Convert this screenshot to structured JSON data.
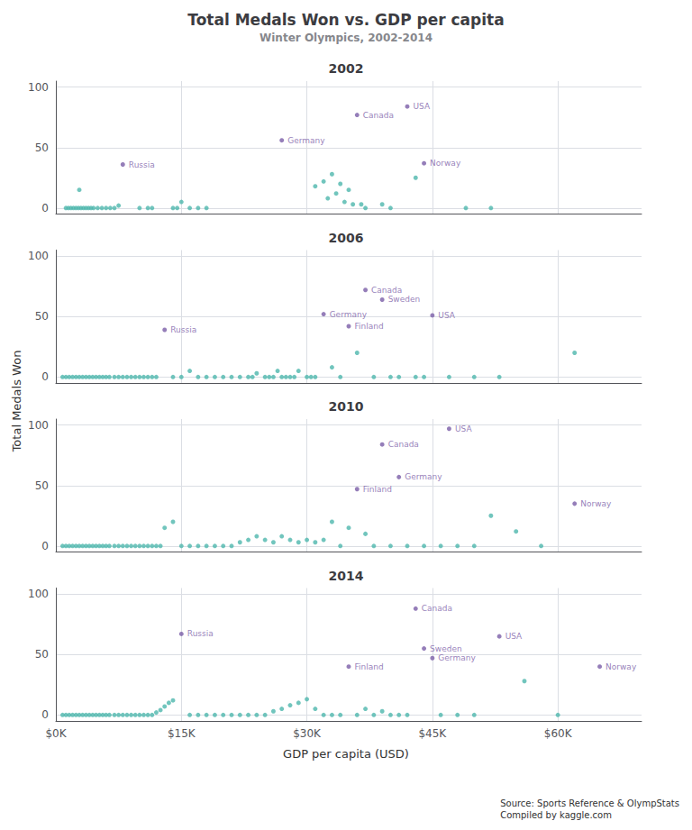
{
  "title": "Total Medals Won vs. GDP per capita",
  "subtitle": "Winter Olympics, 2002-2014",
  "xlabel": "GDP per capita (USD)",
  "ylabel": "Total Medals Won",
  "source": "Source: Sports Reference & OlympStats\nCompiled by kaggle.com",
  "chart_data": [
    {
      "type": "scatter",
      "title": "2002",
      "xlim": [
        0,
        70000
      ],
      "ylim": [
        -5,
        105
      ],
      "xticks": [
        {
          "value": 0,
          "label": "$0K"
        },
        {
          "value": 15000,
          "label": "$15K"
        },
        {
          "value": 30000,
          "label": "$30K"
        },
        {
          "value": 45000,
          "label": "$45K"
        },
        {
          "value": 60000,
          "label": "$60K"
        }
      ],
      "yticks": [
        0,
        50,
        100
      ],
      "grid": true,
      "tick_labels": "y",
      "series": [
        {
          "color": "#4db6ac",
          "x": [
            1200,
            1500,
            1800,
            2100,
            2400,
            2700,
            3000,
            3300,
            3600,
            3900,
            4200,
            4500,
            5000,
            5500,
            6000,
            6500,
            7000,
            7500,
            10000,
            11000,
            11500,
            14000,
            14500,
            15000,
            16000,
            17000,
            18000,
            2800,
            31000,
            32000,
            33000,
            34000,
            35000,
            33500,
            32500,
            34500,
            35500,
            36500,
            37000,
            39000,
            40000,
            43000,
            49000,
            52000
          ],
          "values": [
            0,
            0,
            0,
            0,
            0,
            0,
            0,
            0,
            0,
            0,
            0,
            0,
            0,
            0,
            0,
            0,
            0,
            2,
            0,
            0,
            0,
            0,
            0,
            5,
            0,
            0,
            0,
            15,
            18,
            22,
            28,
            20,
            15,
            12,
            8,
            5,
            3,
            3,
            0,
            3,
            0,
            25,
            0,
            0
          ]
        },
        {
          "color": "#7b5ea7",
          "x": [
            42000,
            36000,
            27000,
            8000,
            44000
          ],
          "values": [
            84,
            77,
            56,
            36,
            37
          ],
          "labels": [
            "USA",
            "Canada",
            "Germany",
            "Russia",
            "Norway"
          ]
        }
      ]
    },
    {
      "type": "scatter",
      "title": "2006",
      "xlim": [
        0,
        70000
      ],
      "ylim": [
        -5,
        105
      ],
      "xticks": [
        {
          "value": 0,
          "label": "$0K"
        },
        {
          "value": 15000,
          "label": "$15K"
        },
        {
          "value": 30000,
          "label": "$30K"
        },
        {
          "value": 45000,
          "label": "$45K"
        },
        {
          "value": 60000,
          "label": "$60K"
        }
      ],
      "yticks": [
        0,
        50,
        100
      ],
      "grid": true,
      "tick_labels": "y",
      "series": [
        {
          "color": "#4db6ac",
          "x": [
            800,
            1200,
            1600,
            2000,
            2400,
            2800,
            3200,
            3600,
            4000,
            4400,
            4800,
            5200,
            5600,
            6000,
            6400,
            7000,
            7500,
            8000,
            8500,
            9000,
            9500,
            10000,
            10500,
            11000,
            11500,
            12000,
            14000,
            15000,
            16000,
            17000,
            18000,
            19000,
            20000,
            21000,
            22000,
            23000,
            23500,
            24000,
            25000,
            25500,
            26000,
            26500,
            27000,
            27500,
            28000,
            28500,
            29000,
            30000,
            30500,
            31000,
            33000,
            34000,
            36000,
            38000,
            40000,
            41000,
            43000,
            44000,
            47000,
            50000,
            53000,
            62000
          ],
          "values": [
            0,
            0,
            0,
            0,
            0,
            0,
            0,
            0,
            0,
            0,
            0,
            0,
            0,
            0,
            0,
            0,
            0,
            0,
            0,
            0,
            0,
            0,
            0,
            0,
            0,
            0,
            0,
            0,
            5,
            0,
            0,
            0,
            0,
            0,
            0,
            0,
            0,
            3,
            0,
            0,
            0,
            5,
            0,
            0,
            0,
            0,
            5,
            0,
            0,
            0,
            8,
            0,
            20,
            0,
            0,
            0,
            0,
            0,
            0,
            0,
            0,
            20
          ]
        },
        {
          "color": "#7b5ea7",
          "x": [
            37000,
            39000,
            32000,
            35000,
            45000,
            13000
          ],
          "values": [
            72,
            64,
            52,
            42,
            51,
            39
          ],
          "labels": [
            "Canada",
            "Sweden",
            "Germany",
            "Finland",
            "USA",
            "Russia"
          ]
        }
      ]
    },
    {
      "type": "scatter",
      "title": "2010",
      "xlim": [
        0,
        70000
      ],
      "ylim": [
        -5,
        105
      ],
      "xticks": [
        {
          "value": 0,
          "label": "$0K"
        },
        {
          "value": 15000,
          "label": "$15K"
        },
        {
          "value": 30000,
          "label": "$30K"
        },
        {
          "value": 45000,
          "label": "$45K"
        },
        {
          "value": 60000,
          "label": "$60K"
        }
      ],
      "yticks": [
        0,
        50,
        100
      ],
      "grid": true,
      "tick_labels": "y",
      "series": [
        {
          "color": "#4db6ac",
          "x": [
            800,
            1200,
            1600,
            2000,
            2400,
            2800,
            3200,
            3600,
            4000,
            4400,
            4800,
            5200,
            5600,
            6000,
            6400,
            7000,
            7500,
            8000,
            8500,
            9000,
            9500,
            10000,
            10500,
            11000,
            11500,
            12000,
            12500,
            13000,
            14000,
            15000,
            16000,
            17000,
            18000,
            19000,
            20000,
            21000,
            22000,
            23000,
            24000,
            25000,
            26000,
            27000,
            28000,
            29000,
            30000,
            31000,
            32000,
            33000,
            34000,
            35000,
            37000,
            38000,
            40000,
            42000,
            44000,
            46000,
            48000,
            50000,
            52000,
            55000,
            58000
          ],
          "values": [
            0,
            0,
            0,
            0,
            0,
            0,
            0,
            0,
            0,
            0,
            0,
            0,
            0,
            0,
            0,
            0,
            0,
            0,
            0,
            0,
            0,
            0,
            0,
            0,
            0,
            0,
            0,
            15,
            20,
            0,
            0,
            0,
            0,
            0,
            0,
            0,
            3,
            5,
            8,
            5,
            3,
            8,
            5,
            3,
            5,
            3,
            5,
            20,
            0,
            15,
            10,
            0,
            0,
            0,
            0,
            0,
            0,
            0,
            25,
            12,
            0
          ]
        },
        {
          "color": "#7b5ea7",
          "x": [
            39000,
            47000,
            41000,
            36000,
            62000
          ],
          "values": [
            84,
            97,
            57,
            47,
            35
          ],
          "labels": [
            "Canada",
            "USA",
            "Germany",
            "Finland",
            "Norway"
          ]
        }
      ]
    },
    {
      "type": "scatter",
      "title": "2014",
      "xlim": [
        0,
        70000
      ],
      "ylim": [
        -5,
        105
      ],
      "xticks": [
        {
          "value": 0,
          "label": "$0K"
        },
        {
          "value": 15000,
          "label": "$15K"
        },
        {
          "value": 30000,
          "label": "$30K"
        },
        {
          "value": 45000,
          "label": "$45K"
        },
        {
          "value": 60000,
          "label": "$60K"
        }
      ],
      "yticks": [
        0,
        50,
        100
      ],
      "grid": true,
      "series": [
        {
          "color": "#4db6ac",
          "x": [
            800,
            1200,
            1600,
            2000,
            2400,
            2800,
            3200,
            3600,
            4000,
            4400,
            4800,
            5200,
            5600,
            6000,
            6400,
            7000,
            7500,
            8000,
            8500,
            9000,
            9500,
            10000,
            10500,
            11000,
            11500,
            12000,
            12500,
            13000,
            13500,
            14000,
            16000,
            17000,
            18000,
            19000,
            20000,
            21000,
            22000,
            23000,
            24000,
            25000,
            26000,
            27000,
            28000,
            29000,
            30000,
            31000,
            32000,
            33000,
            34000,
            36000,
            37000,
            38000,
            39000,
            40000,
            41000,
            42000,
            46000,
            48000,
            50000,
            56000,
            60000
          ],
          "values": [
            0,
            0,
            0,
            0,
            0,
            0,
            0,
            0,
            0,
            0,
            0,
            0,
            0,
            0,
            0,
            0,
            0,
            0,
            0,
            0,
            0,
            0,
            0,
            0,
            0,
            2,
            4,
            7,
            10,
            12,
            0,
            0,
            0,
            0,
            0,
            0,
            0,
            0,
            0,
            0,
            3,
            5,
            8,
            10,
            13,
            5,
            0,
            0,
            0,
            0,
            5,
            0,
            3,
            0,
            0,
            0,
            0,
            0,
            0,
            28,
            0
          ]
        },
        {
          "color": "#7b5ea7",
          "x": [
            43000,
            53000,
            44000,
            45000,
            35000,
            15000,
            65000
          ],
          "values": [
            88,
            65,
            55,
            47,
            40,
            67,
            40
          ],
          "labels": [
            "Canada",
            "USA",
            "Sweden",
            "Germany",
            "Finland",
            "Russia",
            "Norway"
          ]
        }
      ]
    }
  ]
}
